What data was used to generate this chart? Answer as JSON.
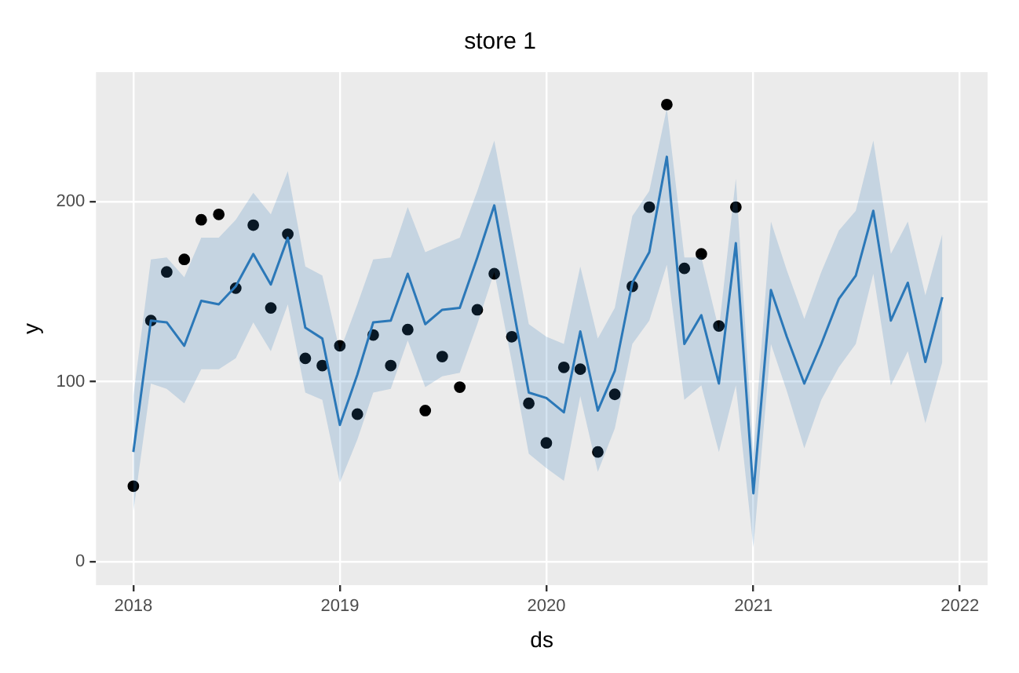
{
  "chart_data": {
    "type": "line",
    "title": "store 1",
    "xlabel": "ds",
    "ylabel": "y",
    "x": [
      "2018-01",
      "2018-02",
      "2018-03",
      "2018-04",
      "2018-05",
      "2018-06",
      "2018-07",
      "2018-08",
      "2018-09",
      "2018-10",
      "2018-11",
      "2018-12",
      "2019-01",
      "2019-02",
      "2019-03",
      "2019-04",
      "2019-05",
      "2019-06",
      "2019-07",
      "2019-08",
      "2019-09",
      "2019-10",
      "2019-11",
      "2019-12",
      "2020-01",
      "2020-02",
      "2020-03",
      "2020-04",
      "2020-05",
      "2020-06",
      "2020-07",
      "2020-08",
      "2020-09",
      "2020-10",
      "2020-11",
      "2020-12",
      "2021-01",
      "2021-02",
      "2021-03",
      "2021-04",
      "2021-05",
      "2021-06",
      "2021-07",
      "2021-08",
      "2021-09",
      "2021-10",
      "2021-11",
      "2021-12"
    ],
    "series": [
      {
        "color": "#2b78b8",
        "values": [
          61,
          134,
          133,
          120,
          145,
          143,
          153,
          171,
          154,
          180,
          130,
          124,
          76,
          104,
          133,
          134,
          160,
          132,
          140,
          141,
          169,
          198,
          145,
          94,
          91,
          83,
          128,
          84,
          106,
          155,
          172,
          225,
          121,
          137,
          99,
          177,
          38,
          151,
          125,
          99,
          121,
          146,
          159,
          195,
          134,
          155,
          111,
          147
        ],
        "lower": [
          28,
          99,
          96,
          88,
          107,
          107,
          113,
          133,
          117,
          143,
          94,
          90,
          44,
          68,
          94,
          96,
          123,
          97,
          103,
          105,
          132,
          161,
          111,
          60,
          52,
          45,
          92,
          50,
          74,
          121,
          134,
          165,
          90,
          98,
          61,
          98,
          8,
          121,
          95,
          63,
          90,
          108,
          121,
          160,
          98,
          117,
          77,
          111
        ],
        "upper": [
          92,
          168,
          169,
          158,
          180,
          180,
          190,
          205,
          193,
          217,
          164,
          159,
          117,
          143,
          168,
          169,
          197,
          172,
          176,
          180,
          206,
          234,
          182,
          132,
          125,
          121,
          164,
          124,
          141,
          192,
          206,
          252,
          169,
          169,
          129,
          213,
          60,
          189,
          162,
          135,
          161,
          184,
          195,
          234,
          171,
          189,
          148,
          182
        ]
      },
      {
        "type": "scatter",
        "color": "#000000",
        "marker": "circle",
        "x": [
          "2018-01",
          "2018-02",
          "2018-03",
          "2018-04",
          "2018-05",
          "2018-06",
          "2018-07",
          "2018-08",
          "2018-09",
          "2018-10",
          "2018-11",
          "2018-12",
          "2019-01",
          "2019-02",
          "2019-03",
          "2019-04",
          "2019-05",
          "2019-06",
          "2019-07",
          "2019-08",
          "2019-09",
          "2019-10",
          "2019-11",
          "2019-12",
          "2020-01",
          "2020-02",
          "2020-03",
          "2020-04",
          "2020-05",
          "2020-06",
          "2020-07",
          "2020-08",
          "2020-09",
          "2020-10",
          "2020-11",
          "2020-12"
        ],
        "values": [
          42,
          134,
          161,
          168,
          190,
          193,
          152,
          187,
          141,
          182,
          113,
          109,
          120,
          82,
          126,
          109,
          129,
          84,
          114,
          97,
          140,
          160,
          125,
          88,
          66,
          108,
          107,
          61,
          93,
          153,
          197,
          254,
          163,
          171,
          131,
          197
        ]
      }
    ],
    "xlim": [
      "2017-10-27",
      "2022-02-19"
    ],
    "xticks": [
      "2018",
      "2019",
      "2020",
      "2021",
      "2022"
    ],
    "ylim": [
      -13,
      272
    ],
    "yticks": [
      0,
      100,
      200
    ],
    "grid": true,
    "legend": false
  }
}
